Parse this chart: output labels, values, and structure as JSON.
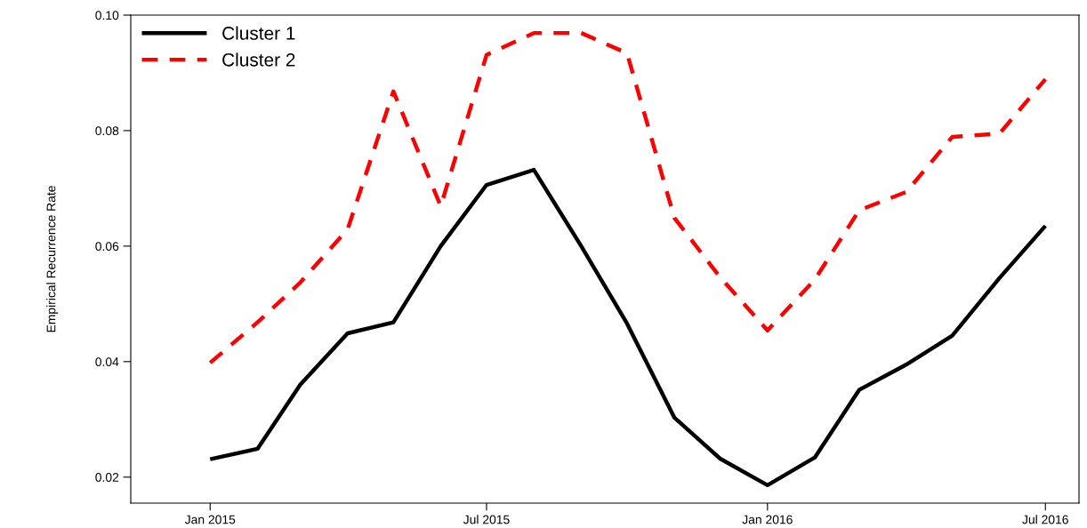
{
  "chart_data": {
    "type": "line",
    "ylabel": "Empirical Recurrence Rate",
    "x": [
      "2015-01",
      "2015-02",
      "2015-03",
      "2015-04",
      "2015-05",
      "2015-06",
      "2015-07",
      "2015-08",
      "2015-09",
      "2015-10",
      "2015-11",
      "2015-12",
      "2016-01",
      "2016-02",
      "2016-03",
      "2016-04",
      "2016-05",
      "2016-06",
      "2016-07"
    ],
    "series": [
      {
        "name": "Cluster 1",
        "color": "#000000",
        "line_style": "solid",
        "values": [
          0.0231,
          0.0249,
          0.036,
          0.0449,
          0.0468,
          0.06,
          0.0706,
          0.0732,
          0.06,
          0.0466,
          0.0303,
          0.0232,
          0.0186,
          0.0234,
          0.0351,
          0.0395,
          0.0445,
          0.0545,
          0.0635
        ]
      },
      {
        "name": "Cluster 2",
        "color": "#ff0000",
        "line_style": "dashed",
        "values": [
          0.0398,
          0.0468,
          0.0537,
          0.0629,
          0.0868,
          0.0669,
          0.0931,
          0.0969,
          0.0969,
          0.0934,
          0.0649,
          0.0546,
          0.0454,
          0.0542,
          0.0662,
          0.0694,
          0.0789,
          0.0795,
          0.0889
        ]
      }
    ],
    "xlim": [
      "2014-11-10",
      "2016-07-23"
    ],
    "xticks": [
      {
        "value": "2015-01",
        "label": "Jan 2015"
      },
      {
        "value": "2015-07",
        "label": "Jul 2015"
      },
      {
        "value": "2016-01",
        "label": "Jan 2016"
      },
      {
        "value": "2016-07",
        "label": "Jul 2016"
      }
    ],
    "ylim": [
      0.0155,
      0.1
    ],
    "yticks": [
      {
        "value": 0.02,
        "label": "0.02"
      },
      {
        "value": 0.04,
        "label": "0.04"
      },
      {
        "value": 0.06,
        "label": "0.06"
      },
      {
        "value": 0.08,
        "label": "0.08"
      },
      {
        "value": 0.1,
        "label": "0.10"
      }
    ],
    "grid": false,
    "legend": "top left",
    "marker": "none"
  }
}
